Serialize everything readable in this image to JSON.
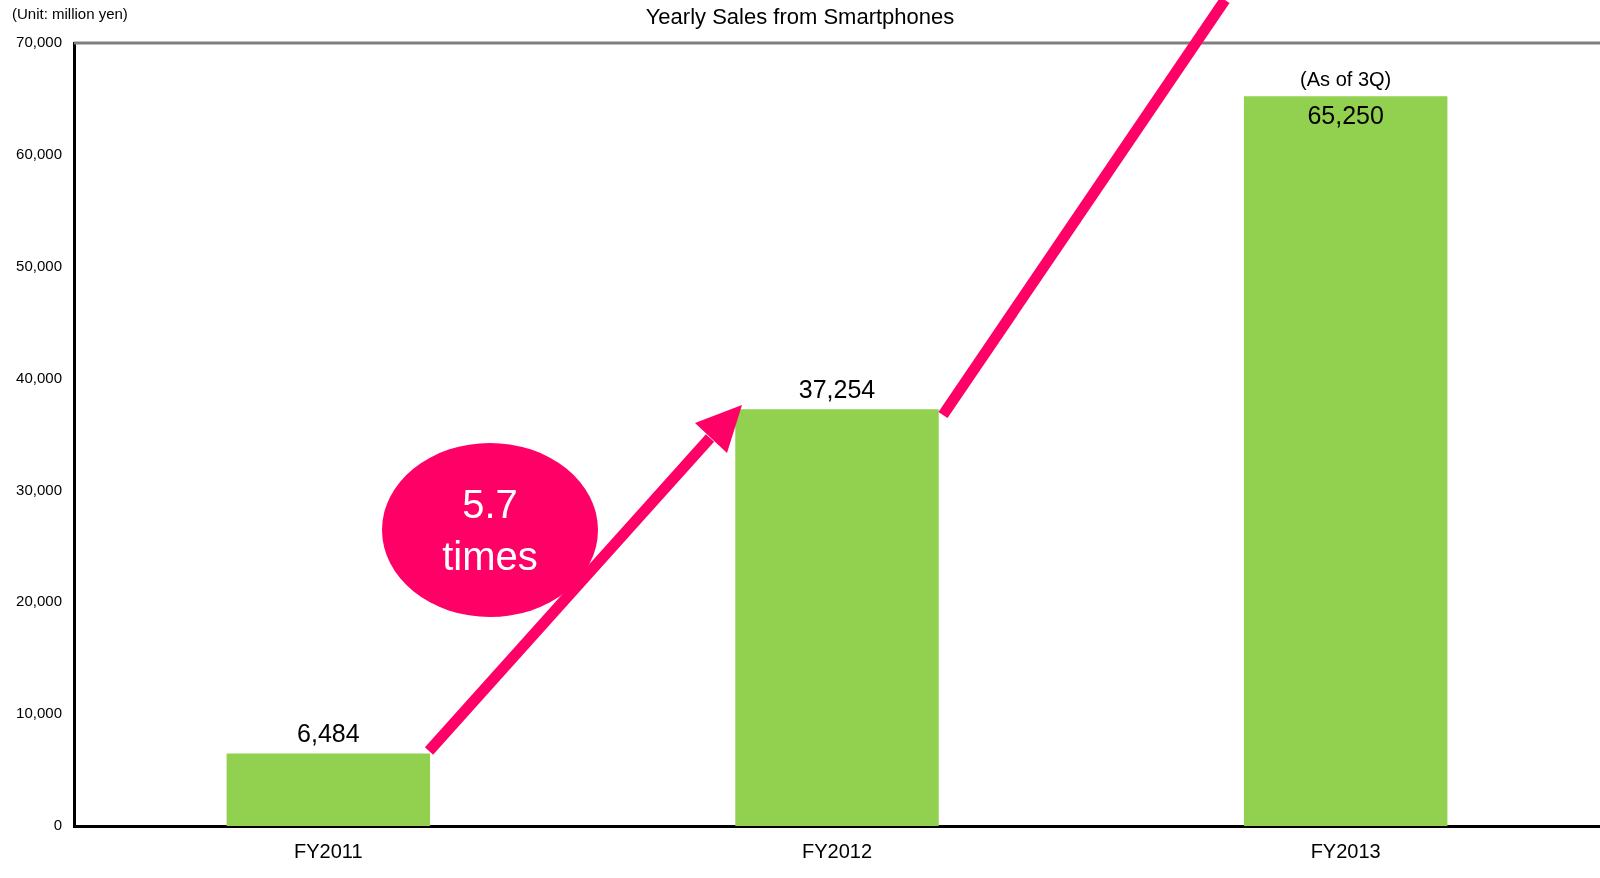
{
  "chart_data": {
    "type": "bar",
    "title": "Yearly Sales from Smartphones",
    "categories": [
      "FY2011",
      "FY2012",
      "FY2013"
    ],
    "values": [
      6484,
      37254,
      65250
    ],
    "color": "#92d050",
    "ylim": [
      0,
      70000
    ],
    "yticks": [
      0,
      {
        "value": 10000,
        "label": "10,000"
      },
      {
        "value": 20000,
        "label": "20,000"
      },
      {
        "value": 30000,
        "label": "30,000"
      },
      {
        "value": 40000,
        "label": "40,000"
      },
      {
        "value": 50000,
        "label": "50,000"
      },
      {
        "value": 60000,
        "label": "60,000"
      },
      {
        "value": 70000,
        "label": "70,000"
      }
    ],
    "grid": false,
    "legend": false,
    "value_labels": [
      "6,484",
      "37,254",
      "65,250"
    ],
    "annotations": [
      "(Unit: million yen)",
      "5.7 times",
      {
        "text": "(As of 3Q)",
        "x": "FY2013",
        "y": 65250
      }
    ]
  }
}
